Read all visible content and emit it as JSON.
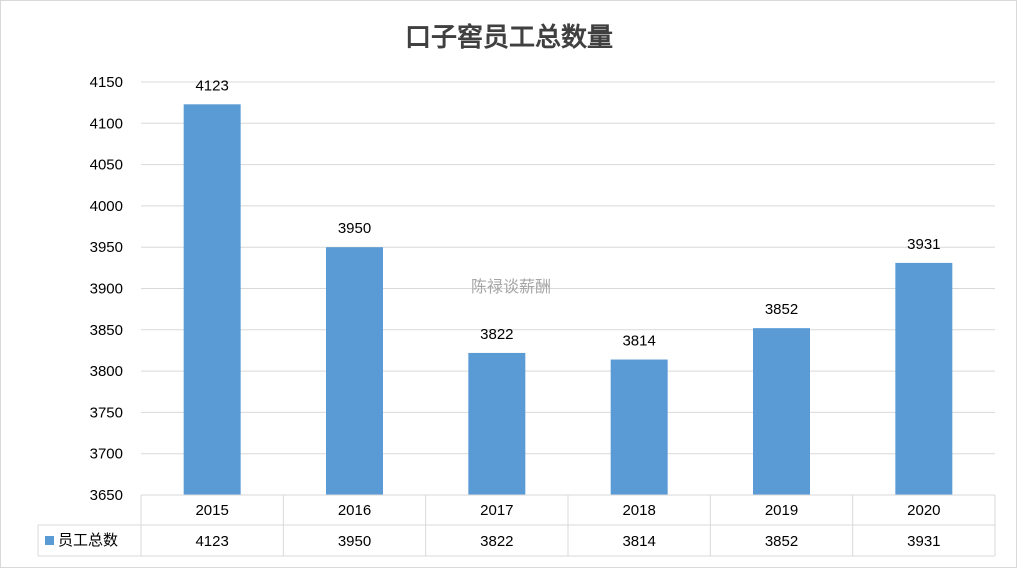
{
  "chart_data": {
    "type": "bar",
    "title": "口子窖员工总数量",
    "categories": [
      "2015",
      "2016",
      "2017",
      "2018",
      "2019",
      "2020"
    ],
    "series": [
      {
        "name": "员工总数",
        "values": [
          4123,
          3950,
          3822,
          3814,
          3852,
          3931
        ],
        "color": "#5b9bd5"
      }
    ],
    "ylim": [
      3650,
      4150
    ],
    "yticks": [
      "3650",
      "3700",
      "3750",
      "3800",
      "3850",
      "3900",
      "3950",
      "4000",
      "4050",
      "4100",
      "4150"
    ],
    "grid": true,
    "data_labels": true,
    "data_table": true,
    "legend": "data-table"
  },
  "watermark": "陈禄谈薪酬"
}
